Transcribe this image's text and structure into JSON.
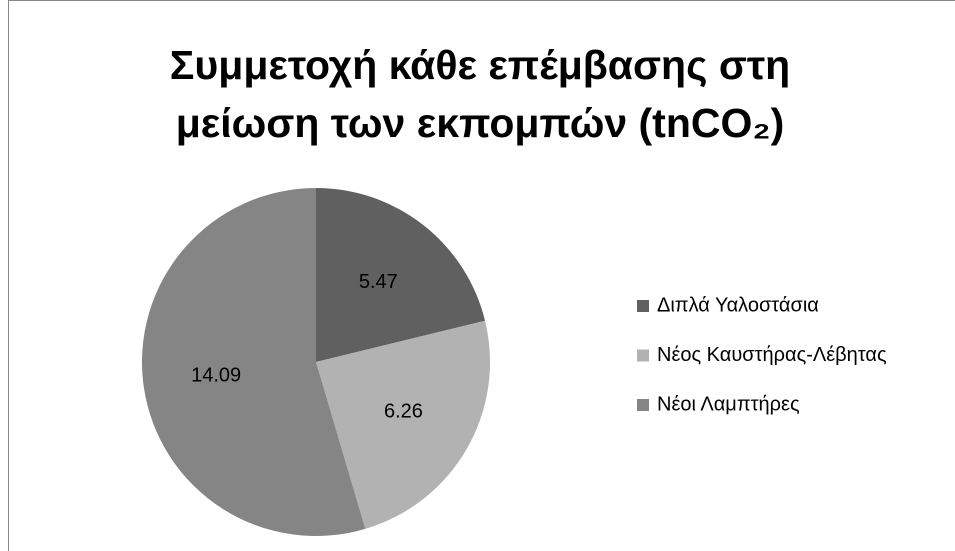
{
  "chart_data": {
    "type": "pie",
    "title": "Συμμετοχή κάθε επέμβασης στη μείωση των εκπομπών (tnCO₂)",
    "categories": [
      "Διπλά Υαλοστάσια",
      "Νέος Καυστήρας-Λέβητας",
      "Νέοι Λαμπτήρες"
    ],
    "values": [
      5.47,
      6.26,
      14.09
    ],
    "colors": [
      "#606060",
      "#b2b2b2",
      "#858585"
    ],
    "legend": "right"
  }
}
